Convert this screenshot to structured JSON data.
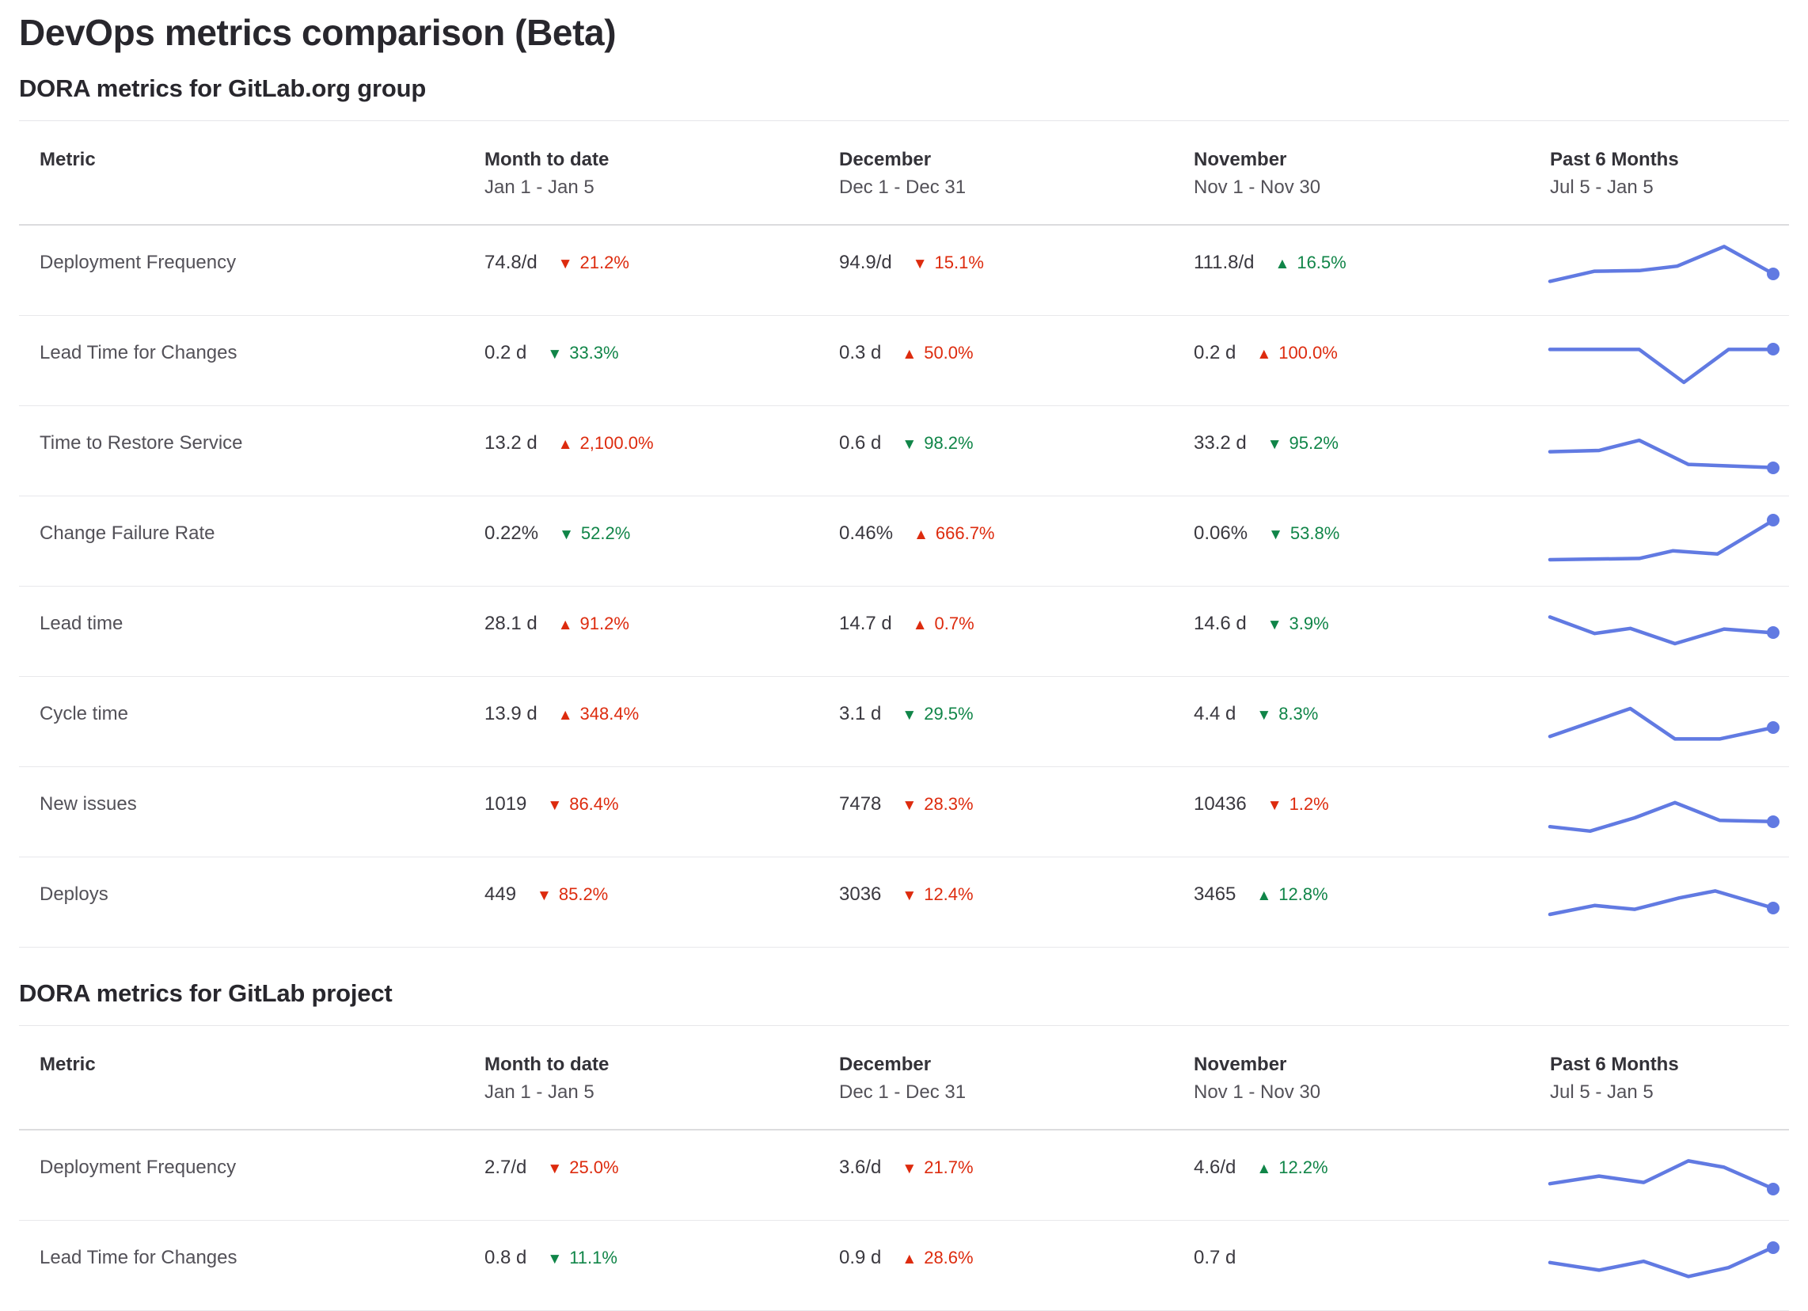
{
  "page": {
    "title": "DevOps metrics comparison (Beta)"
  },
  "colors": {
    "bad_red": "#dd2b0e",
    "good_green": "#108548",
    "sparkline_blue": "#617ae2"
  },
  "tables": [
    {
      "section_title": "DORA metrics for GitLab.org group",
      "columns": [
        {
          "label": "Metric",
          "sublabel": ""
        },
        {
          "label": "Month to date",
          "sublabel": "Jan 1 - Jan 5"
        },
        {
          "label": "December",
          "sublabel": "Dec 1 - Dec 31"
        },
        {
          "label": "November",
          "sublabel": "Nov 1 - Nov 30"
        },
        {
          "label": "Past 6 Months",
          "sublabel": "Jul 5 - Jan 5"
        }
      ],
      "rows": [
        {
          "metric": "Deployment Frequency",
          "cells": [
            {
              "value": "74.8/d",
              "change": "21.2%",
              "direction": "down",
              "color": "red"
            },
            {
              "value": "94.9/d",
              "change": "15.1%",
              "direction": "down",
              "color": "red"
            },
            {
              "value": "111.8/d",
              "change": "16.5%",
              "direction": "up",
              "color": "green"
            }
          ],
          "sparkline": [
            [
              0,
              68
            ],
            [
              20,
              52
            ],
            [
              40,
              51
            ],
            [
              57,
              44
            ],
            [
              78,
              13
            ],
            [
              100,
              56
            ]
          ]
        },
        {
          "metric": "Lead Time for Changes",
          "cells": [
            {
              "value": "0.2 d",
              "change": "33.3%",
              "direction": "down",
              "color": "green"
            },
            {
              "value": "0.3 d",
              "change": "50.0%",
              "direction": "up",
              "color": "red"
            },
            {
              "value": "0.2 d",
              "change": "100.0%",
              "direction": "up",
              "color": "red"
            }
          ],
          "sparkline": [
            [
              0,
              33
            ],
            [
              40,
              33
            ],
            [
              60,
              85
            ],
            [
              80,
              33
            ],
            [
              100,
              33
            ]
          ]
        },
        {
          "metric": "Time to Restore Service",
          "cells": [
            {
              "value": "13.2 d",
              "change": "2,100.0%",
              "direction": "up",
              "color": "red"
            },
            {
              "value": "0.6 d",
              "change": "98.2%",
              "direction": "down",
              "color": "green"
            },
            {
              "value": "33.2 d",
              "change": "95.2%",
              "direction": "down",
              "color": "green"
            }
          ],
          "sparkline": [
            [
              0,
              52
            ],
            [
              22,
              50
            ],
            [
              40,
              34
            ],
            [
              62,
              72
            ],
            [
              100,
              77
            ]
          ]
        },
        {
          "metric": "Change Failure Rate",
          "cells": [
            {
              "value": "0.22%",
              "change": "52.2%",
              "direction": "down",
              "color": "green"
            },
            {
              "value": "0.46%",
              "change": "666.7%",
              "direction": "up",
              "color": "red"
            },
            {
              "value": "0.06%",
              "change": "53.8%",
              "direction": "down",
              "color": "green"
            }
          ],
          "sparkline": [
            [
              0,
              80
            ],
            [
              40,
              78
            ],
            [
              55,
              66
            ],
            [
              75,
              71
            ],
            [
              100,
              18
            ]
          ]
        },
        {
          "metric": "Lead time",
          "cells": [
            {
              "value": "28.1 d",
              "change": "91.2%",
              "direction": "up",
              "color": "red"
            },
            {
              "value": "14.7 d",
              "change": "0.7%",
              "direction": "up",
              "color": "red"
            },
            {
              "value": "14.6 d",
              "change": "3.9%",
              "direction": "down",
              "color": "green"
            }
          ],
          "sparkline": [
            [
              0,
              28
            ],
            [
              20,
              54
            ],
            [
              36,
              46
            ],
            [
              56,
              70
            ],
            [
              78,
              47
            ],
            [
              100,
              53
            ]
          ]
        },
        {
          "metric": "Cycle time",
          "cells": [
            {
              "value": "13.9 d",
              "change": "348.4%",
              "direction": "up",
              "color": "red"
            },
            {
              "value": "3.1 d",
              "change": "29.5%",
              "direction": "down",
              "color": "green"
            },
            {
              "value": "4.4 d",
              "change": "8.3%",
              "direction": "down",
              "color": "green"
            }
          ],
          "sparkline": [
            [
              0,
              74
            ],
            [
              36,
              30
            ],
            [
              56,
              78
            ],
            [
              76,
              78
            ],
            [
              100,
              60
            ]
          ]
        },
        {
          "metric": "New issues",
          "cells": [
            {
              "value": "1019",
              "change": "86.4%",
              "direction": "down",
              "color": "red"
            },
            {
              "value": "7478",
              "change": "28.3%",
              "direction": "down",
              "color": "red"
            },
            {
              "value": "10436",
              "change": "1.2%",
              "direction": "down",
              "color": "red"
            }
          ],
          "sparkline": [
            [
              0,
              74
            ],
            [
              18,
              81
            ],
            [
              38,
              60
            ],
            [
              56,
              36
            ],
            [
              76,
              64
            ],
            [
              100,
              66
            ]
          ]
        },
        {
          "metric": "Deploys",
          "cells": [
            {
              "value": "449",
              "change": "85.2%",
              "direction": "down",
              "color": "red"
            },
            {
              "value": "3036",
              "change": "12.4%",
              "direction": "down",
              "color": "red"
            },
            {
              "value": "3465",
              "change": "12.8%",
              "direction": "up",
              "color": "green"
            }
          ],
          "sparkline": [
            [
              0,
              70
            ],
            [
              20,
              56
            ],
            [
              38,
              62
            ],
            [
              58,
              44
            ],
            [
              74,
              33
            ],
            [
              100,
              60
            ]
          ]
        }
      ]
    },
    {
      "section_title": "DORA metrics for GitLab project",
      "columns": [
        {
          "label": "Metric",
          "sublabel": ""
        },
        {
          "label": "Month to date",
          "sublabel": "Jan 1 - Jan 5"
        },
        {
          "label": "December",
          "sublabel": "Dec 1 - Dec 31"
        },
        {
          "label": "November",
          "sublabel": "Nov 1 - Nov 30"
        },
        {
          "label": "Past 6 Months",
          "sublabel": "Jul 5 - Jan 5"
        }
      ],
      "rows": [
        {
          "metric": "Deployment Frequency",
          "cells": [
            {
              "value": "2.7/d",
              "change": "25.0%",
              "direction": "down",
              "color": "red"
            },
            {
              "value": "3.6/d",
              "change": "21.7%",
              "direction": "down",
              "color": "red"
            },
            {
              "value": "4.6/d",
              "change": "12.2%",
              "direction": "up",
              "color": "green"
            }
          ],
          "sparkline": [
            [
              0,
              64
            ],
            [
              22,
              52
            ],
            [
              42,
              62
            ],
            [
              62,
              28
            ],
            [
              78,
              38
            ],
            [
              100,
              72
            ]
          ]
        },
        {
          "metric": "Lead Time for Changes",
          "cells": [
            {
              "value": "0.8 d",
              "change": "11.1%",
              "direction": "down",
              "color": "green"
            },
            {
              "value": "0.9 d",
              "change": "28.6%",
              "direction": "up",
              "color": "red"
            },
            {
              "value": "0.7 d",
              "change": null,
              "direction": null,
              "color": null
            }
          ],
          "sparkline": [
            [
              0,
              46
            ],
            [
              22,
              58
            ],
            [
              42,
              44
            ],
            [
              62,
              68
            ],
            [
              80,
              54
            ],
            [
              100,
              22
            ]
          ]
        }
      ]
    }
  ]
}
